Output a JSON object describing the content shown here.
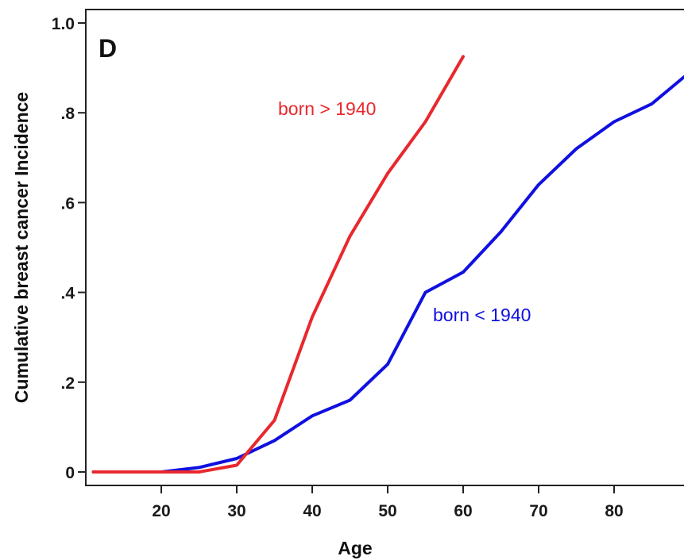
{
  "chart_data": {
    "type": "line",
    "title": "",
    "panel_label": "D",
    "xlabel": "Age",
    "ylabel": "Cumulative breast cancer Incidence",
    "xlim": [
      10,
      90
    ],
    "ylim": [
      -0.03,
      1.03
    ],
    "xticks": [
      20,
      30,
      40,
      50,
      60,
      70,
      80
    ],
    "xtick_labels": [
      "20",
      "30",
      "40",
      "50",
      "60",
      "70",
      "80"
    ],
    "yticks": [
      0,
      0.2,
      0.4,
      0.6,
      0.8,
      1.0
    ],
    "ytick_labels": [
      "0",
      ".2",
      ".4",
      ".6",
      ".8",
      "1.0"
    ],
    "grid": false,
    "legend": "inline labels",
    "series": [
      {
        "name": "born < 1940",
        "color": "#1010e0",
        "x": [
          11,
          20,
          25,
          30,
          35,
          40,
          45,
          50,
          55,
          60,
          65,
          70,
          75,
          80,
          85,
          90
        ],
        "y": [
          0,
          0,
          0.01,
          0.03,
          0.07,
          0.125,
          0.16,
          0.24,
          0.4,
          0.445,
          0.535,
          0.64,
          0.72,
          0.78,
          0.82,
          0.89
        ]
      },
      {
        "name": "born > 1940",
        "color": "#e8282d",
        "x": [
          11,
          20,
          25,
          30,
          35,
          40,
          45,
          50,
          55,
          60
        ],
        "y": [
          0,
          0,
          0,
          0.015,
          0.115,
          0.345,
          0.525,
          0.665,
          0.78,
          0.925
        ]
      }
    ]
  }
}
